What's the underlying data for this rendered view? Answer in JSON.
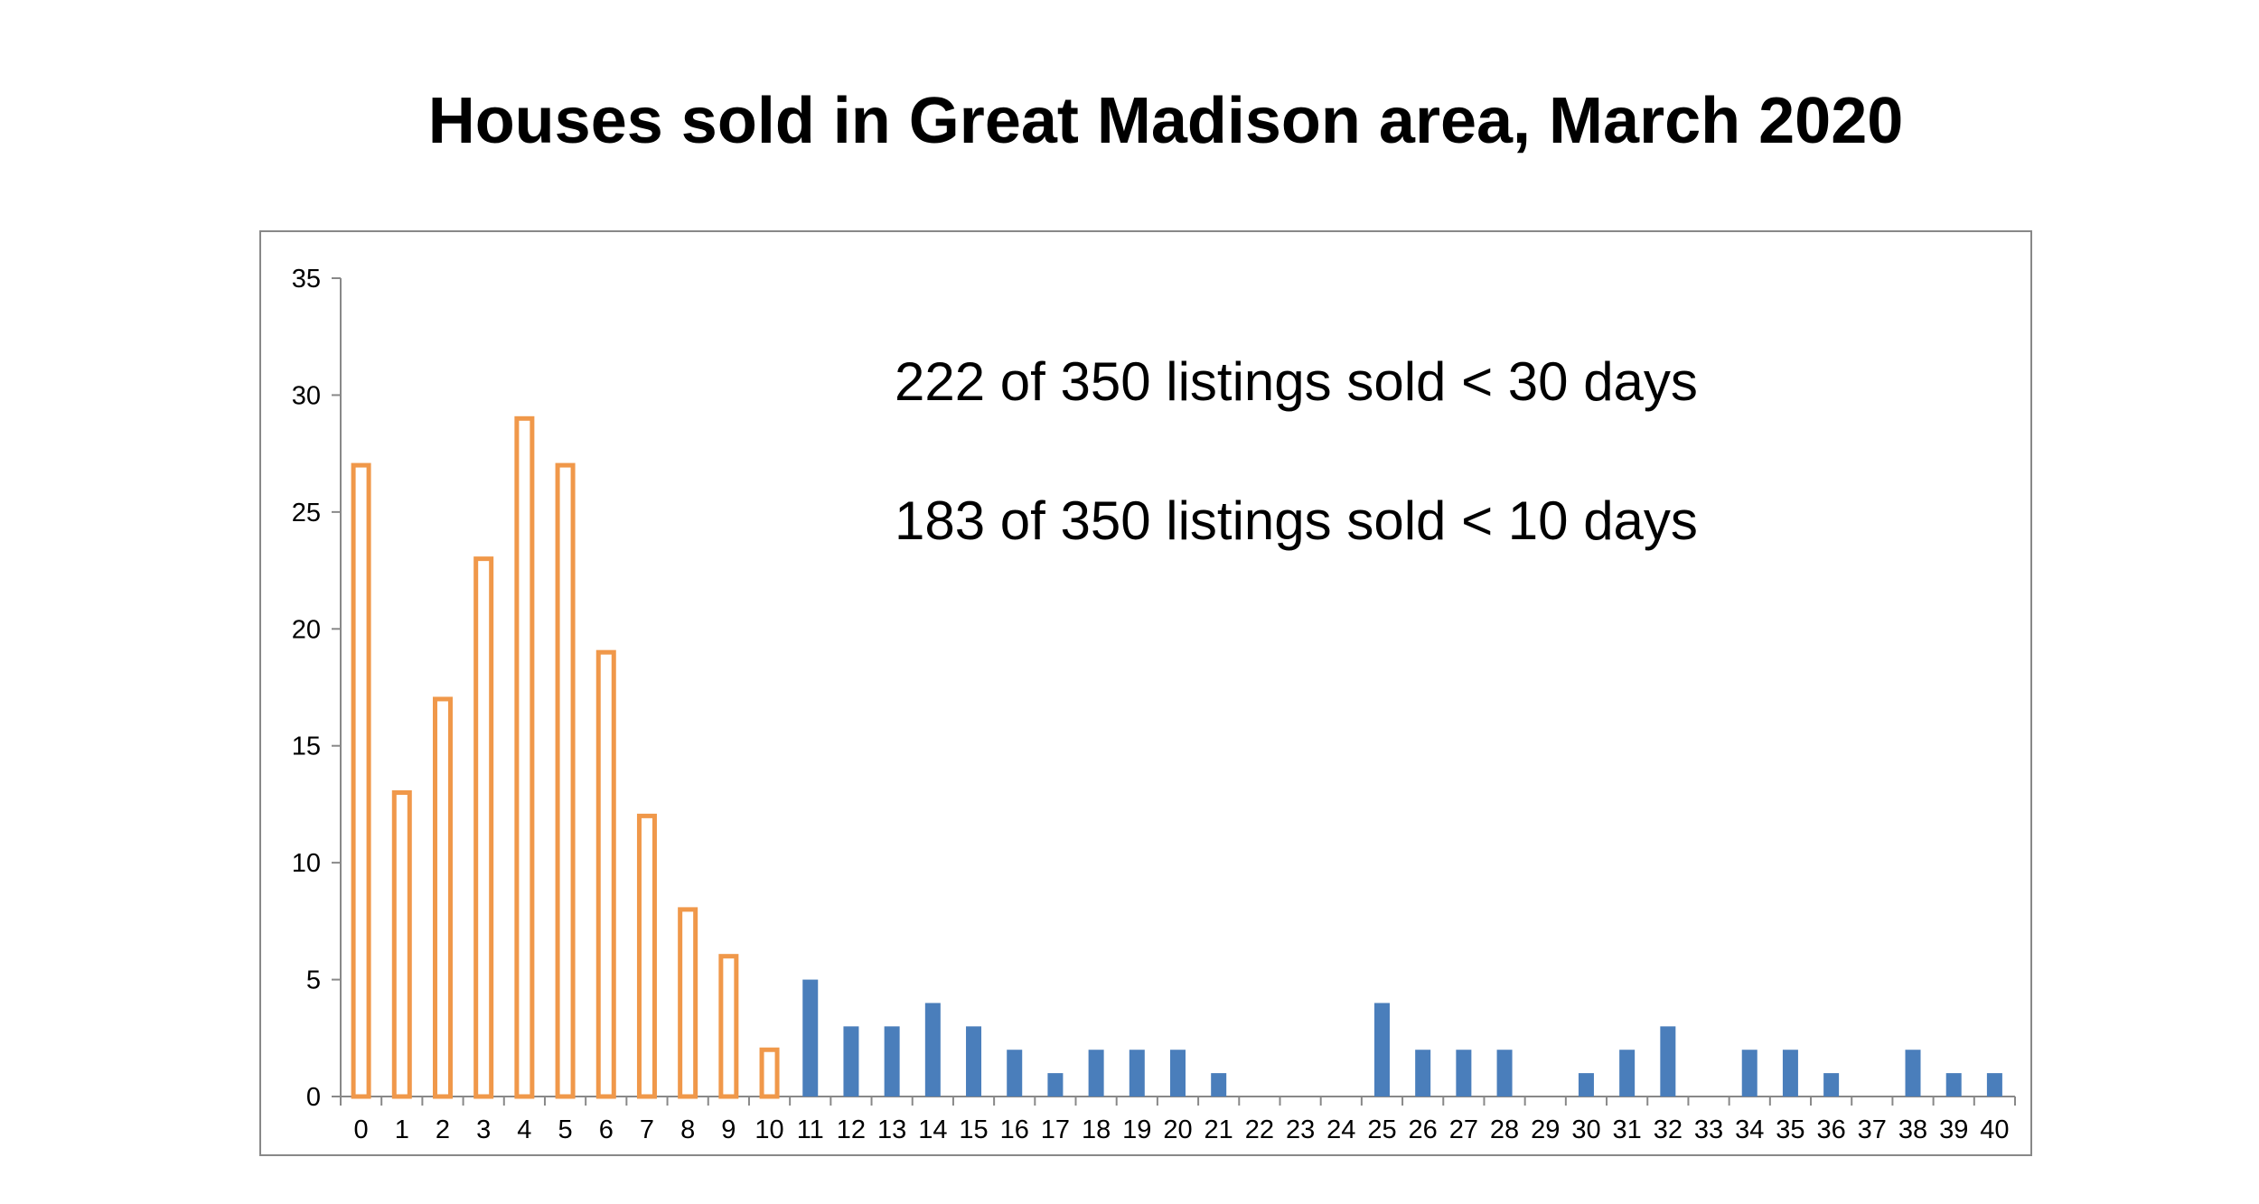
{
  "chart_data": {
    "type": "bar",
    "title": "Houses sold in Great Madison area, March 2020",
    "xlabel": "",
    "ylabel": "",
    "ylim": [
      0,
      35
    ],
    "yticks": [
      "0",
      "5",
      "10",
      "15",
      "20",
      "25",
      "30",
      "35"
    ],
    "grid": false,
    "categories": [
      "0",
      "1",
      "2",
      "3",
      "4",
      "5",
      "6",
      "7",
      "8",
      "9",
      "10",
      "11",
      "12",
      "13",
      "14",
      "15",
      "16",
      "17",
      "18",
      "19",
      "20",
      "21",
      "22",
      "23",
      "24",
      "25",
      "26",
      "27",
      "28",
      "29",
      "30",
      "31",
      "32",
      "33",
      "34",
      "35",
      "36",
      "37",
      "38",
      "39",
      "40"
    ],
    "values": [
      27,
      13,
      17,
      23,
      29,
      27,
      19,
      12,
      8,
      6,
      2,
      5,
      3,
      3,
      4,
      3,
      2,
      1,
      2,
      2,
      2,
      1,
      0,
      0,
      0,
      4,
      2,
      2,
      2,
      0,
      1,
      2,
      3,
      0,
      2,
      2,
      1,
      0,
      2,
      1,
      1
    ],
    "highlight_through_category": "10",
    "colors": {
      "highlight_outline": "#F0984A",
      "highlight_fill": "#FFFFFF",
      "rest_fill": "#4A7EBB",
      "axis": "#888888",
      "frame": "#888888"
    },
    "annotations": [
      "222 of 350 listings sold < 30 days",
      "183 of 350 listings sold < 10 days"
    ]
  }
}
